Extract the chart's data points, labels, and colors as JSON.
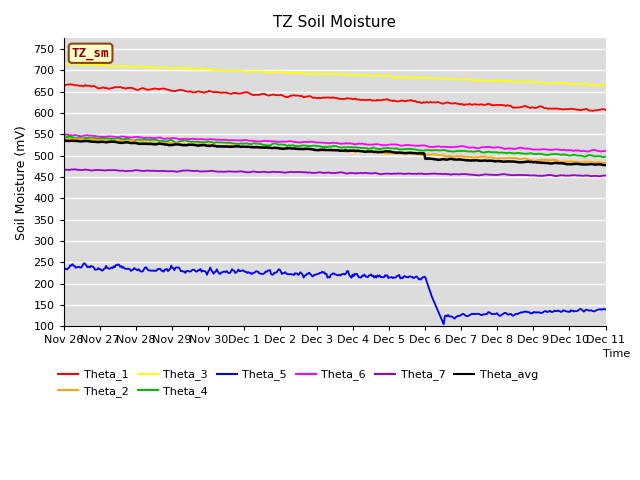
{
  "title": "TZ Soil Moisture",
  "xlabel": "Time",
  "ylabel": "Soil Moisture (mV)",
  "ylim": [
    100,
    775
  ],
  "yticks": [
    100,
    150,
    200,
    250,
    300,
    350,
    400,
    450,
    500,
    550,
    600,
    650,
    700,
    750
  ],
  "background_color": "#DCDCDC",
  "fig_color": "#FFFFFF",
  "label_box": "TZ_sm",
  "label_box_bg": "#FFFFCC",
  "label_box_border": "#8B4513",
  "label_box_text_color": "#8B0000",
  "lines": {
    "Theta_1": {
      "color": "#FF0000"
    },
    "Theta_2": {
      "color": "#FFA500"
    },
    "Theta_3": {
      "color": "#FFFF00"
    },
    "Theta_4": {
      "color": "#00BB00"
    },
    "Theta_5": {
      "color": "#0000FF"
    },
    "Theta_6": {
      "color": "#FF00FF"
    },
    "Theta_7": {
      "color": "#9900CC"
    },
    "Theta_avg": {
      "color": "#000000"
    }
  },
  "n_points": 500,
  "x_start_day": 0,
  "x_end_day": 15,
  "xtick_labels": [
    "Nov 26",
    "Nov 27",
    "Nov 28",
    "Nov 29",
    "Nov 30",
    "Dec 1",
    "Dec 2",
    "Dec 3",
    "Dec 4",
    "Dec 5",
    "Dec 6",
    "Dec 7",
    "Dec 8",
    "Dec 9",
    "Dec 10",
    "Dec 11"
  ],
  "xtick_positions": [
    0,
    1,
    2,
    3,
    4,
    5,
    6,
    7,
    8,
    9,
    10,
    11,
    12,
    13,
    14,
    15
  ],
  "legend_row1": [
    "Theta_1",
    "Theta_2",
    "Theta_3",
    "Theta_4",
    "Theta_5",
    "Theta_6"
  ],
  "legend_row2": [
    "Theta_7",
    "Theta_avg"
  ]
}
